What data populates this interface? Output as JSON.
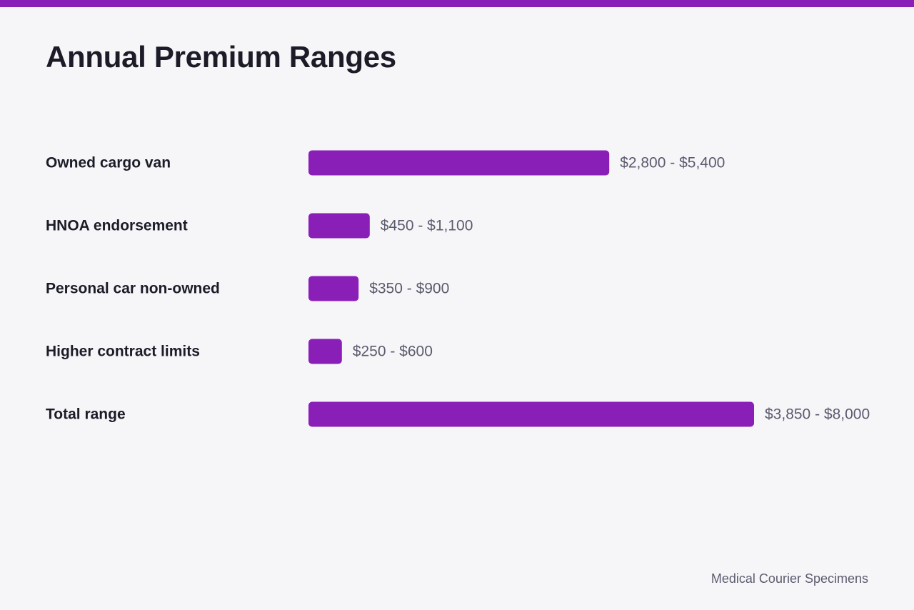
{
  "colors": {
    "accent": "#8a1fb8",
    "background": "#f6f6f9",
    "title": "#1c1c28",
    "value_text": "#5b5b6e"
  },
  "source": "Medical Courier Specimens",
  "chart_data": {
    "type": "bar",
    "orientation": "horizontal",
    "title": "Annual Premium Ranges",
    "xlabel": "",
    "ylabel": "",
    "grid": false,
    "categories": [
      "Owned cargo van",
      "HNOA endorsement",
      "Personal car non-owned",
      "Higher contract limits",
      "Total range"
    ],
    "range_labels": [
      "$2,800 - $5,400",
      "$450 - $1,100",
      "$350 - $900",
      "$250 - $600",
      "$3,850 - $8,000"
    ],
    "ranges": [
      [
        2800,
        5400
      ],
      [
        450,
        1100
      ],
      [
        350,
        900
      ],
      [
        250,
        600
      ],
      [
        3850,
        8000
      ]
    ],
    "values": [
      5400,
      1100,
      900,
      600,
      8000
    ],
    "xlim": [
      0,
      8000
    ]
  }
}
